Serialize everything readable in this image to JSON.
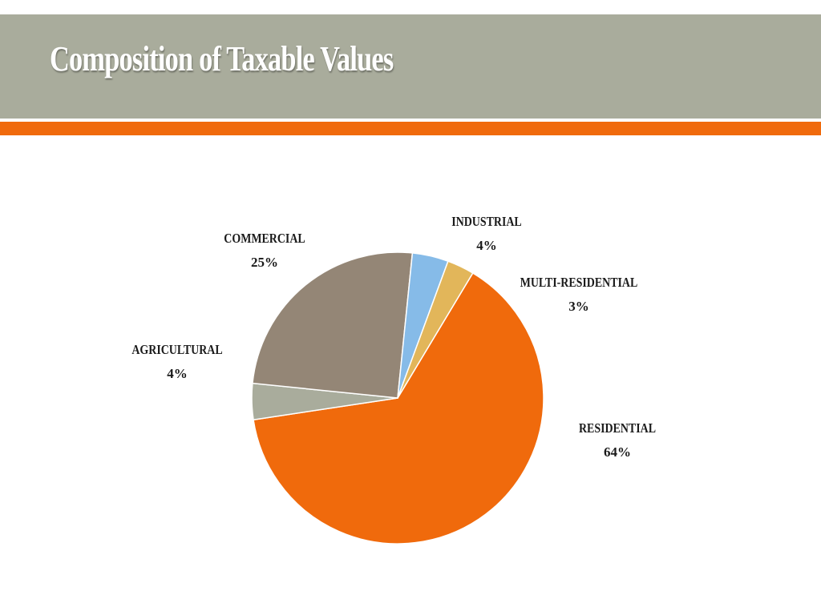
{
  "slide": {
    "title": "Composition of Taxable Values"
  },
  "colors": {
    "title_band": "#a9ac9c",
    "accent_bar": "#f06a0c"
  },
  "chart_data": {
    "type": "pie",
    "title": "",
    "unit": "%",
    "slices": [
      {
        "category": "RESIDENTIAL",
        "value": 64,
        "label": "64%",
        "color": "#f06a0c"
      },
      {
        "category": "AGRICULTURAL",
        "value": 4,
        "label": "4%",
        "color": "#a9ac9c"
      },
      {
        "category": "COMMERCIAL",
        "value": 25,
        "label": "25%",
        "color": "#948676"
      },
      {
        "category": "INDUSTRIAL",
        "value": 4,
        "label": "4%",
        "color": "#86bbe8"
      },
      {
        "category": "MULTI-RESIDENTIAL",
        "value": 3,
        "label": "3%",
        "color": "#e2b65a"
      }
    ],
    "legend": "none",
    "data_labels": "outside"
  }
}
